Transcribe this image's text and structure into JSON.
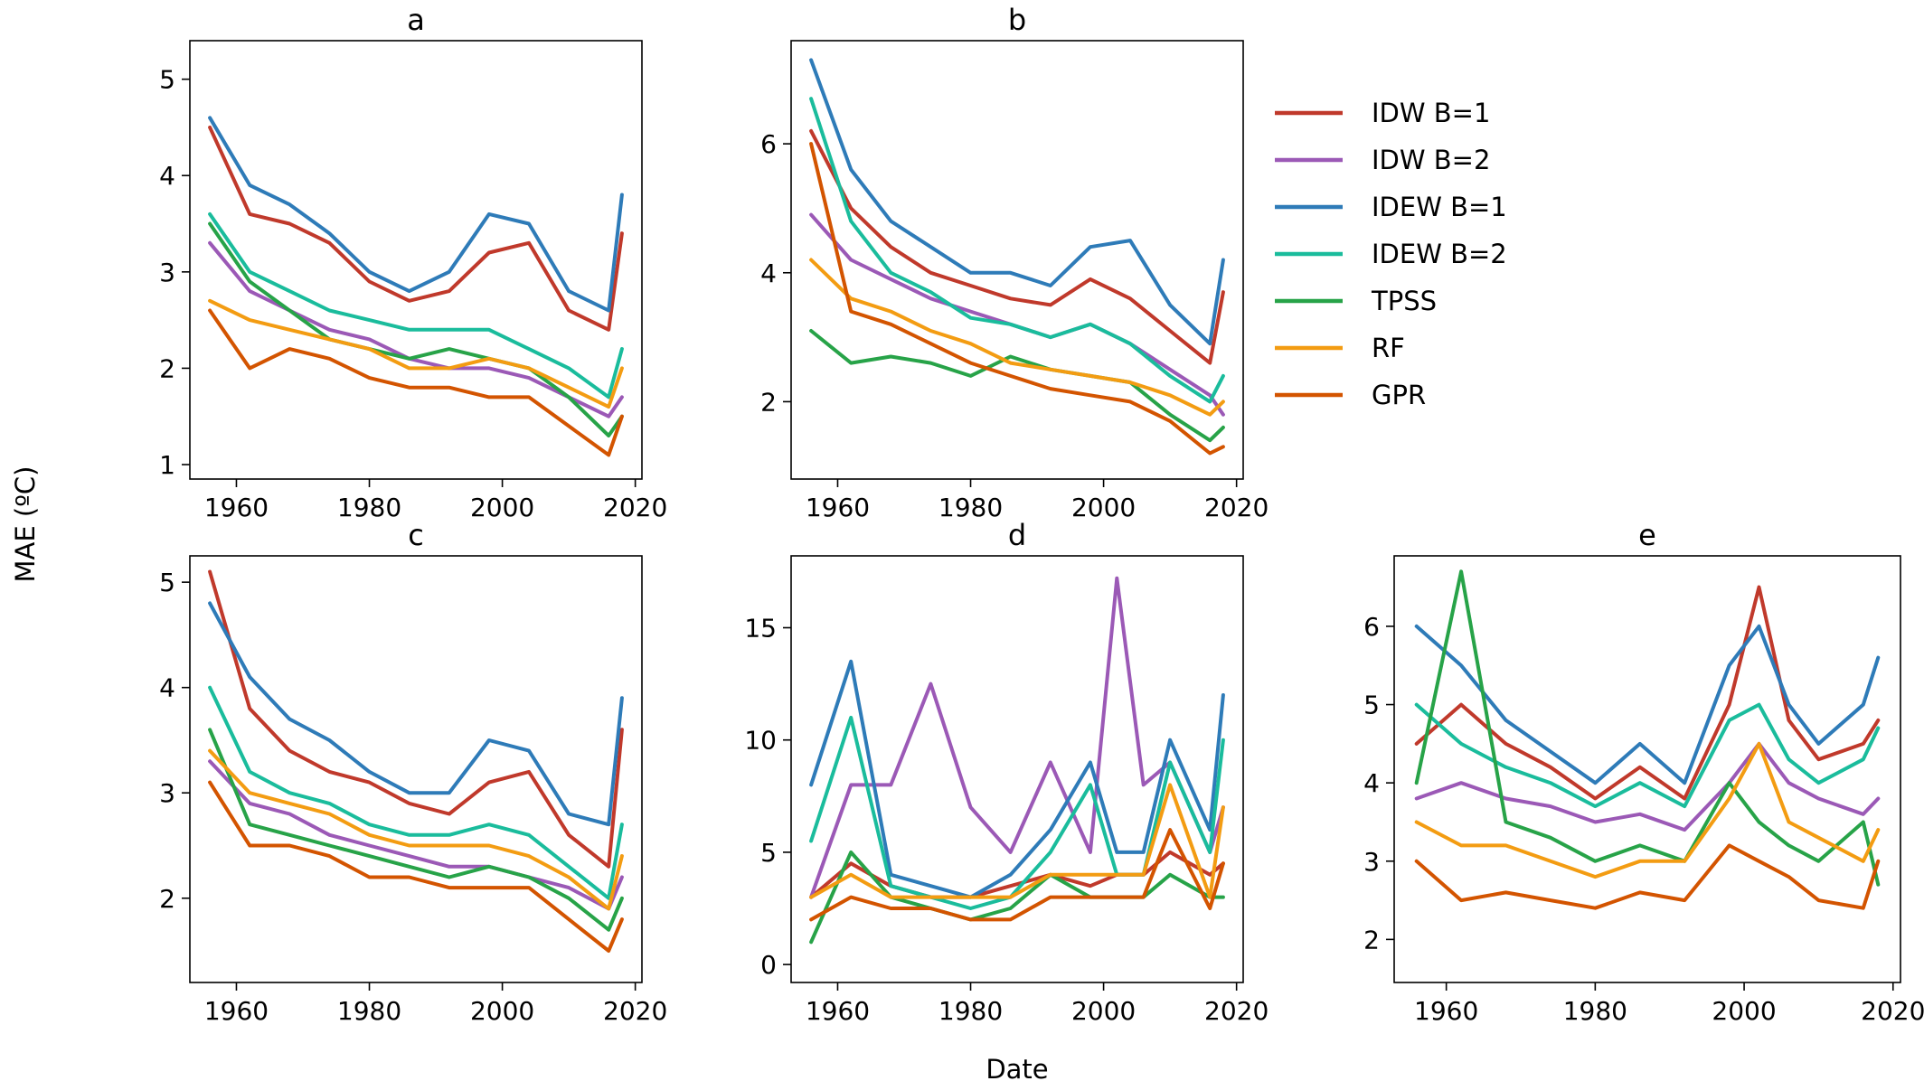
{
  "figure": {
    "xlabel": "Date",
    "ylabel": "MAE (ºC)"
  },
  "legend": [
    {
      "name": "IDW B=1",
      "color": "#c0392b"
    },
    {
      "name": "IDW B=2",
      "color": "#9b59b6"
    },
    {
      "name": "IDEW B=1",
      "color": "#2e7bb8"
    },
    {
      "name": "IDEW B=2",
      "color": "#1abc9c"
    },
    {
      "name": "TPSS",
      "color": "#27a348"
    },
    {
      "name": "RF",
      "color": "#f39c12"
    },
    {
      "name": "GPR",
      "color": "#d35400"
    }
  ],
  "chart_data": [
    {
      "type": "line",
      "title": "a",
      "xlabel": "",
      "ylabel": "",
      "xlim": [
        1953,
        2021
      ],
      "ylim": [
        0.85,
        5.4
      ],
      "xticks": [
        1960,
        1980,
        2000,
        2020
      ],
      "yticks": [
        1,
        2,
        3,
        4,
        5
      ],
      "x": [
        1956,
        1962,
        1968,
        1974,
        1980,
        1986,
        1992,
        1998,
        2004,
        2010,
        2016,
        2018
      ],
      "series": [
        {
          "name": "IDW B=1",
          "values": [
            4.5,
            3.6,
            3.5,
            3.3,
            2.9,
            2.7,
            2.8,
            3.2,
            3.3,
            2.6,
            2.4,
            3.4
          ]
        },
        {
          "name": "IDW B=2",
          "values": [
            3.3,
            2.8,
            2.6,
            2.4,
            2.3,
            2.1,
            2.0,
            2.0,
            1.9,
            1.7,
            1.5,
            1.7
          ]
        },
        {
          "name": "IDEW B=1",
          "values": [
            4.6,
            3.9,
            3.7,
            3.4,
            3.0,
            2.8,
            3.0,
            3.6,
            3.5,
            2.8,
            2.6,
            3.8
          ]
        },
        {
          "name": "IDEW B=2",
          "values": [
            3.6,
            3.0,
            2.8,
            2.6,
            2.5,
            2.4,
            2.4,
            2.4,
            2.2,
            2.0,
            1.7,
            2.2
          ]
        },
        {
          "name": "TPSS",
          "values": [
            3.5,
            2.9,
            2.6,
            2.3,
            2.2,
            2.1,
            2.2,
            2.1,
            2.0,
            1.7,
            1.3,
            1.5
          ]
        },
        {
          "name": "RF",
          "values": [
            2.7,
            2.5,
            2.4,
            2.3,
            2.2,
            2.0,
            2.0,
            2.1,
            2.0,
            1.8,
            1.6,
            2.0
          ]
        },
        {
          "name": "GPR",
          "values": [
            2.6,
            2.0,
            2.2,
            2.1,
            1.9,
            1.8,
            1.8,
            1.7,
            1.7,
            1.4,
            1.1,
            1.5
          ]
        }
      ]
    },
    {
      "type": "line",
      "title": "b",
      "xlabel": "",
      "ylabel": "",
      "xlim": [
        1953,
        2021
      ],
      "ylim": [
        0.8,
        7.6
      ],
      "xticks": [
        1960,
        1980,
        2000,
        2020
      ],
      "yticks": [
        2,
        4,
        6
      ],
      "x": [
        1956,
        1962,
        1968,
        1974,
        1980,
        1986,
        1992,
        1998,
        2004,
        2010,
        2016,
        2018
      ],
      "series": [
        {
          "name": "IDW B=1",
          "values": [
            6.2,
            5.0,
            4.4,
            4.0,
            3.8,
            3.6,
            3.5,
            3.9,
            3.6,
            3.1,
            2.6,
            3.7
          ]
        },
        {
          "name": "IDW B=2",
          "values": [
            4.9,
            4.2,
            3.9,
            3.6,
            3.4,
            3.2,
            3.0,
            3.2,
            2.9,
            2.5,
            2.1,
            1.8
          ]
        },
        {
          "name": "IDEW B=1",
          "values": [
            7.3,
            5.6,
            4.8,
            4.4,
            4.0,
            4.0,
            3.8,
            4.4,
            4.5,
            3.5,
            2.9,
            4.2
          ]
        },
        {
          "name": "IDEW B=2",
          "values": [
            6.7,
            4.8,
            4.0,
            3.7,
            3.3,
            3.2,
            3.0,
            3.2,
            2.9,
            2.4,
            2.0,
            2.4
          ]
        },
        {
          "name": "TPSS",
          "values": [
            3.1,
            2.6,
            2.7,
            2.6,
            2.4,
            2.7,
            2.5,
            2.4,
            2.3,
            1.8,
            1.4,
            1.6
          ]
        },
        {
          "name": "RF",
          "values": [
            4.2,
            3.6,
            3.4,
            3.1,
            2.9,
            2.6,
            2.5,
            2.4,
            2.3,
            2.1,
            1.8,
            2.0
          ]
        },
        {
          "name": "GPR",
          "values": [
            6.0,
            3.4,
            3.2,
            2.9,
            2.6,
            2.4,
            2.2,
            2.1,
            2.0,
            1.7,
            1.2,
            1.3
          ]
        }
      ]
    },
    {
      "type": "line",
      "title": "c",
      "xlabel": "",
      "ylabel": "",
      "xlim": [
        1953,
        2021
      ],
      "ylim": [
        1.2,
        5.25
      ],
      "xticks": [
        1960,
        1980,
        2000,
        2020
      ],
      "yticks": [
        2,
        3,
        4,
        5
      ],
      "x": [
        1956,
        1962,
        1968,
        1974,
        1980,
        1986,
        1992,
        1998,
        2004,
        2010,
        2016,
        2018
      ],
      "series": [
        {
          "name": "IDW B=1",
          "values": [
            5.1,
            3.8,
            3.4,
            3.2,
            3.1,
            2.9,
            2.8,
            3.1,
            3.2,
            2.6,
            2.3,
            3.6
          ]
        },
        {
          "name": "IDW B=2",
          "values": [
            3.3,
            2.9,
            2.8,
            2.6,
            2.5,
            2.4,
            2.3,
            2.3,
            2.2,
            2.1,
            1.9,
            2.2
          ]
        },
        {
          "name": "IDEW B=1",
          "values": [
            4.8,
            4.1,
            3.7,
            3.5,
            3.2,
            3.0,
            3.0,
            3.5,
            3.4,
            2.8,
            2.7,
            3.9
          ]
        },
        {
          "name": "IDEW B=2",
          "values": [
            4.0,
            3.2,
            3.0,
            2.9,
            2.7,
            2.6,
            2.6,
            2.7,
            2.6,
            2.3,
            2.0,
            2.7
          ]
        },
        {
          "name": "TPSS",
          "values": [
            3.6,
            2.7,
            2.6,
            2.5,
            2.4,
            2.3,
            2.2,
            2.3,
            2.2,
            2.0,
            1.7,
            2.0
          ]
        },
        {
          "name": "RF",
          "values": [
            3.4,
            3.0,
            2.9,
            2.8,
            2.6,
            2.5,
            2.5,
            2.5,
            2.4,
            2.2,
            1.9,
            2.4
          ]
        },
        {
          "name": "GPR",
          "values": [
            3.1,
            2.5,
            2.5,
            2.4,
            2.2,
            2.2,
            2.1,
            2.1,
            2.1,
            1.8,
            1.5,
            1.8
          ]
        }
      ]
    },
    {
      "type": "line",
      "title": "d",
      "xlabel": "",
      "ylabel": "",
      "xlim": [
        1953,
        2021
      ],
      "ylim": [
        -0.8,
        18.2
      ],
      "xticks": [
        1960,
        1980,
        2000,
        2020
      ],
      "yticks": [
        0,
        5,
        10,
        15
      ],
      "x": [
        1956,
        1962,
        1968,
        1974,
        1980,
        1986,
        1992,
        1998,
        2002,
        2006,
        2010,
        2016,
        2018
      ],
      "series": [
        {
          "name": "IDW B=1",
          "values": [
            3.0,
            4.5,
            3.5,
            3.0,
            3.0,
            3.5,
            4.0,
            3.5,
            4.0,
            4.0,
            5.0,
            4.0,
            4.5
          ]
        },
        {
          "name": "IDW B=2",
          "values": [
            3.0,
            8.0,
            8.0,
            12.5,
            7.0,
            5.0,
            9.0,
            5.0,
            17.2,
            8.0,
            9.0,
            5.0,
            7.0
          ]
        },
        {
          "name": "IDEW B=1",
          "values": [
            8.0,
            13.5,
            4.0,
            3.5,
            3.0,
            4.0,
            6.0,
            9.0,
            5.0,
            5.0,
            10.0,
            6.0,
            12.0
          ]
        },
        {
          "name": "IDEW B=2",
          "values": [
            5.5,
            11.0,
            3.5,
            3.0,
            2.5,
            3.0,
            5.0,
            8.0,
            4.0,
            4.0,
            9.0,
            5.0,
            10.0
          ]
        },
        {
          "name": "TPSS",
          "values": [
            1.0,
            5.0,
            3.0,
            2.5,
            2.0,
            2.5,
            4.0,
            3.0,
            3.0,
            3.0,
            4.0,
            3.0,
            3.0
          ]
        },
        {
          "name": "RF",
          "values": [
            3.0,
            4.0,
            3.0,
            3.0,
            3.0,
            3.0,
            4.0,
            4.0,
            4.0,
            4.0,
            8.0,
            3.0,
            7.0
          ]
        },
        {
          "name": "GPR",
          "values": [
            2.0,
            3.0,
            2.5,
            2.5,
            2.0,
            2.0,
            3.0,
            3.0,
            3.0,
            3.0,
            6.0,
            2.5,
            4.5
          ]
        }
      ]
    },
    {
      "type": "line",
      "title": "e",
      "xlabel": "",
      "ylabel": "",
      "xlim": [
        1953,
        2021
      ],
      "ylim": [
        1.45,
        6.9
      ],
      "xticks": [
        1960,
        1980,
        2000,
        2020
      ],
      "yticks": [
        2,
        3,
        4,
        5,
        6
      ],
      "x": [
        1956,
        1962,
        1968,
        1974,
        1980,
        1986,
        1992,
        1998,
        2002,
        2006,
        2010,
        2016,
        2018
      ],
      "series": [
        {
          "name": "IDW B=1",
          "values": [
            4.5,
            5.0,
            4.5,
            4.2,
            3.8,
            4.2,
            3.8,
            5.0,
            6.5,
            4.8,
            4.3,
            4.5,
            4.8
          ]
        },
        {
          "name": "IDW B=2",
          "values": [
            3.8,
            4.0,
            3.8,
            3.7,
            3.5,
            3.6,
            3.4,
            4.0,
            4.5,
            4.0,
            3.8,
            3.6,
            3.8
          ]
        },
        {
          "name": "IDEW B=1",
          "values": [
            6.0,
            5.5,
            4.8,
            4.4,
            4.0,
            4.5,
            4.0,
            5.5,
            6.0,
            5.0,
            4.5,
            5.0,
            5.6
          ]
        },
        {
          "name": "IDEW B=2",
          "values": [
            5.0,
            4.5,
            4.2,
            4.0,
            3.7,
            4.0,
            3.7,
            4.8,
            5.0,
            4.3,
            4.0,
            4.3,
            4.7
          ]
        },
        {
          "name": "TPSS",
          "values": [
            4.0,
            6.7,
            3.5,
            3.3,
            3.0,
            3.2,
            3.0,
            4.0,
            3.5,
            3.2,
            3.0,
            3.5,
            2.7
          ]
        },
        {
          "name": "RF",
          "values": [
            3.5,
            3.2,
            3.2,
            3.0,
            2.8,
            3.0,
            3.0,
            3.8,
            4.5,
            3.5,
            3.3,
            3.0,
            3.4
          ]
        },
        {
          "name": "GPR",
          "values": [
            3.0,
            2.5,
            2.6,
            2.5,
            2.4,
            2.6,
            2.5,
            3.2,
            3.0,
            2.8,
            2.5,
            2.4,
            3.0
          ]
        }
      ]
    }
  ]
}
